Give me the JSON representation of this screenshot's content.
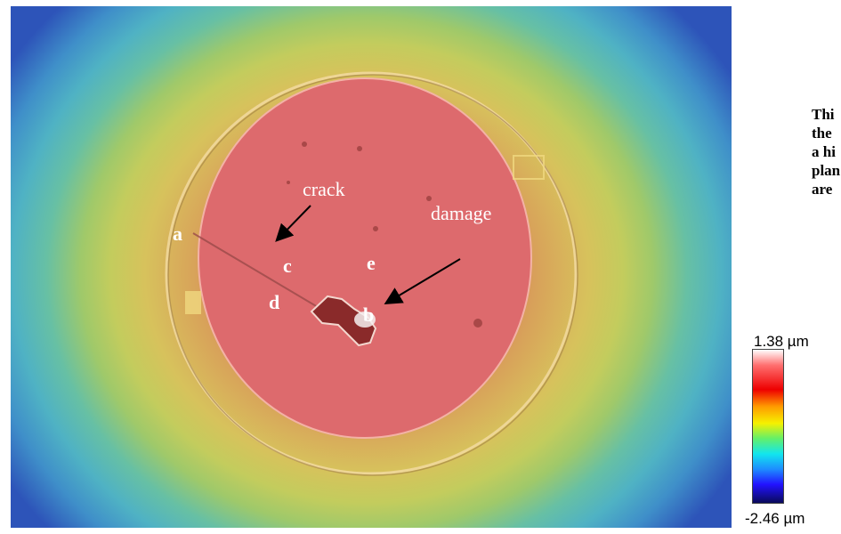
{
  "image": {
    "labels": {
      "crack": "crack",
      "damage": "damage",
      "a": "a",
      "b": "b",
      "c": "c",
      "d": "d",
      "e": "e"
    }
  },
  "side_text": {
    "lines": [
      "Thi",
      "the",
      "a hi",
      "plan",
      "are"
    ]
  },
  "color_scale": {
    "max_label": "1.38 µm",
    "min_label": "-2.46 µm",
    "colors": [
      "#ffffff",
      "#ff7070",
      "#ee0000",
      "#ff9a00",
      "#f6f100",
      "#63f06a",
      "#12e6ee",
      "#1d8dff",
      "#2212ff",
      "#0a0a5a"
    ]
  }
}
